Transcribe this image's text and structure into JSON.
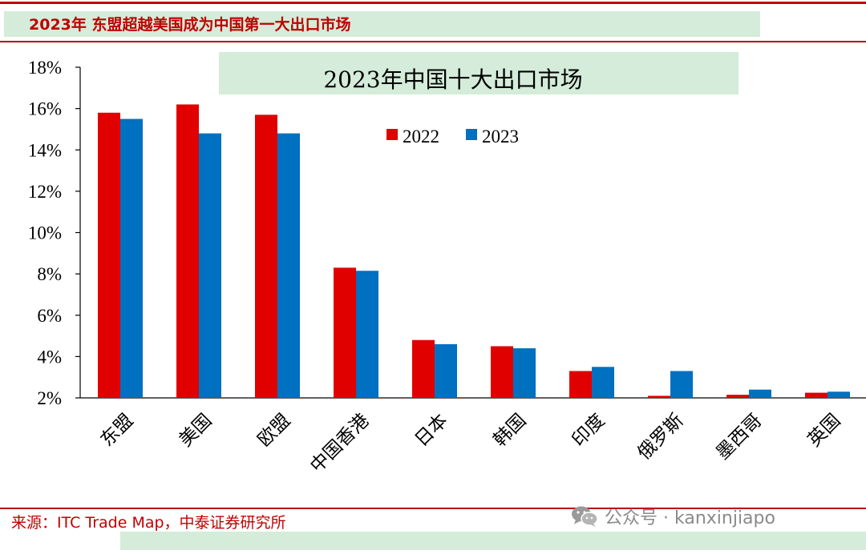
{
  "header": {
    "title": "2023年 东盟超越美国成为中国第一大出口市场"
  },
  "source": {
    "text": "来源：ITC Trade Map，中泰证券研究所"
  },
  "watermark": {
    "text": "公众号 · kanxinjiapo",
    "icon": "wechat-icon"
  },
  "colors": {
    "accent": "#c00000",
    "band": "#d4ecd9",
    "series_2022": "#e00000",
    "series_2023": "#0070c0"
  },
  "chart_data": {
    "type": "bar",
    "title": "2023年中国十大出口市场",
    "xlabel": "",
    "ylabel": "",
    "ylim": [
      2,
      18
    ],
    "yticks": [
      "2%",
      "4%",
      "6%",
      "8%",
      "10%",
      "12%",
      "14%",
      "16%",
      "18%"
    ],
    "tick_values": [
      2,
      4,
      6,
      8,
      10,
      12,
      14,
      16,
      18
    ],
    "grid": false,
    "legend_position": "top-center",
    "categories": [
      "东盟",
      "美国",
      "欧盟",
      "中国香港",
      "日本",
      "韩国",
      "印度",
      "俄罗斯",
      "墨西哥",
      "英国"
    ],
    "series": [
      {
        "name": "2022",
        "color": "#e00000",
        "values": [
          15.8,
          16.2,
          15.7,
          8.3,
          4.8,
          4.5,
          3.3,
          2.1,
          2.15,
          2.25
        ]
      },
      {
        "name": "2023",
        "color": "#0070c0",
        "values": [
          15.5,
          14.8,
          14.8,
          8.15,
          4.6,
          4.4,
          3.5,
          3.3,
          2.4,
          2.3
        ]
      }
    ]
  }
}
